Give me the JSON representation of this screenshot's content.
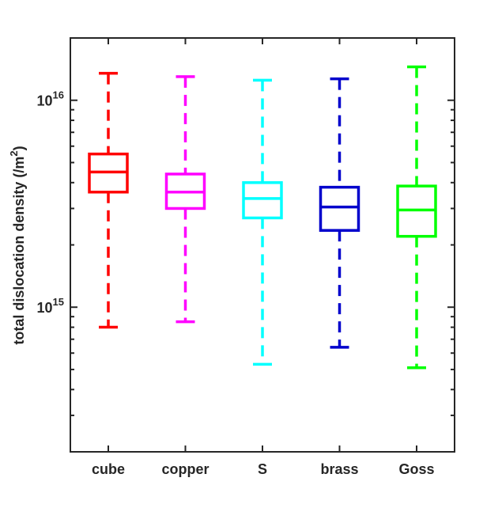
{
  "chart_data": {
    "type": "box",
    "title": "",
    "xlabel": "",
    "ylabel": {
      "text": "total dislocation density (/m",
      "sup": "2",
      "close": ")"
    },
    "yscale": "log",
    "ylim": [
      200000000000000.0,
      2e+16
    ],
    "ytick_labels": [
      {
        "value": 1000000000000000.0,
        "base": "10",
        "exp": "15"
      },
      {
        "value": 1e+16,
        "base": "10",
        "exp": "16"
      }
    ],
    "categories": [
      "cube",
      "copper",
      "S",
      "brass",
      "Goss"
    ],
    "colors": [
      "#ff0000",
      "#ff00ff",
      "#00ffff",
      "#0000cc",
      "#00ff00"
    ],
    "boxes": [
      {
        "label": "cube",
        "whisker_low": 800000000000000.0,
        "q1": 3600000000000000.0,
        "median": 4500000000000000.0,
        "q3": 5500000000000000.0,
        "whisker_high": 1.35e+16
      },
      {
        "label": "copper",
        "whisker_low": 850000000000000.0,
        "q1": 3000000000000000.0,
        "median": 3600000000000000.0,
        "q3": 4400000000000000.0,
        "whisker_high": 1.3e+16
      },
      {
        "label": "S",
        "whisker_low": 530000000000000.0,
        "q1": 2700000000000000.0,
        "median": 3350000000000000.0,
        "q3": 4000000000000000.0,
        "whisker_high": 1.25e+16
      },
      {
        "label": "brass",
        "whisker_low": 640000000000000.0,
        "q1": 2350000000000000.0,
        "median": 3050000000000000.0,
        "q3": 3800000000000000.0,
        "whisker_high": 1.27e+16
      },
      {
        "label": "Goss",
        "whisker_low": 510000000000000.0,
        "q1": 2200000000000000.0,
        "median": 2950000000000000.0,
        "q3": 3850000000000000.0,
        "whisker_high": 1.45e+16
      }
    ],
    "grid": false,
    "legend": "none"
  }
}
